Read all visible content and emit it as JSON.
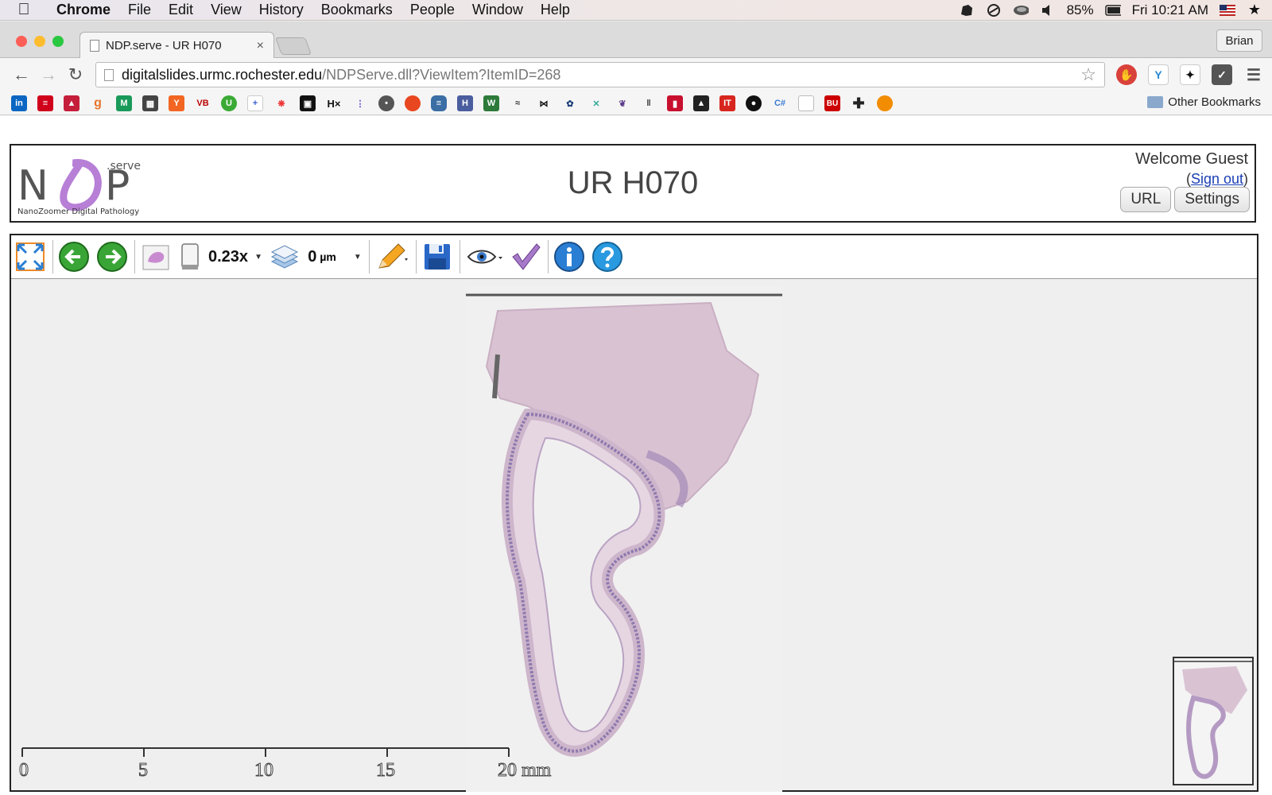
{
  "menubar": {
    "app": "Chrome",
    "items": [
      "File",
      "Edit",
      "View",
      "History",
      "Bookmarks",
      "People",
      "Window",
      "Help"
    ],
    "battery": "85%",
    "clock": "Fri 10:21 AM"
  },
  "browser": {
    "tab_title": "NDP.serve - UR H070",
    "profile": "Brian",
    "url_host": "digitalslides.urmc.rochester.edu",
    "url_path": "/NDPServe.dll?ViewItem?ItemID=268",
    "other_bookmarks": "Other Bookmarks"
  },
  "header": {
    "logo_tagline": "NanoZoomer Digital Pathology",
    "logo_serve": ".serve",
    "logo_n": "N",
    "logo_p": "P",
    "title": "UR H070",
    "welcome": "Welcome Guest",
    "signout_open": "(",
    "signout": "Sign out",
    "signout_close": ")",
    "url_btn": "URL",
    "settings_btn": "Settings"
  },
  "viewer": {
    "zoom": "0.23x",
    "z_offset": "0",
    "z_unit": "µm",
    "scale_labels": [
      "0",
      "5",
      "10",
      "15",
      "20 mm"
    ]
  }
}
